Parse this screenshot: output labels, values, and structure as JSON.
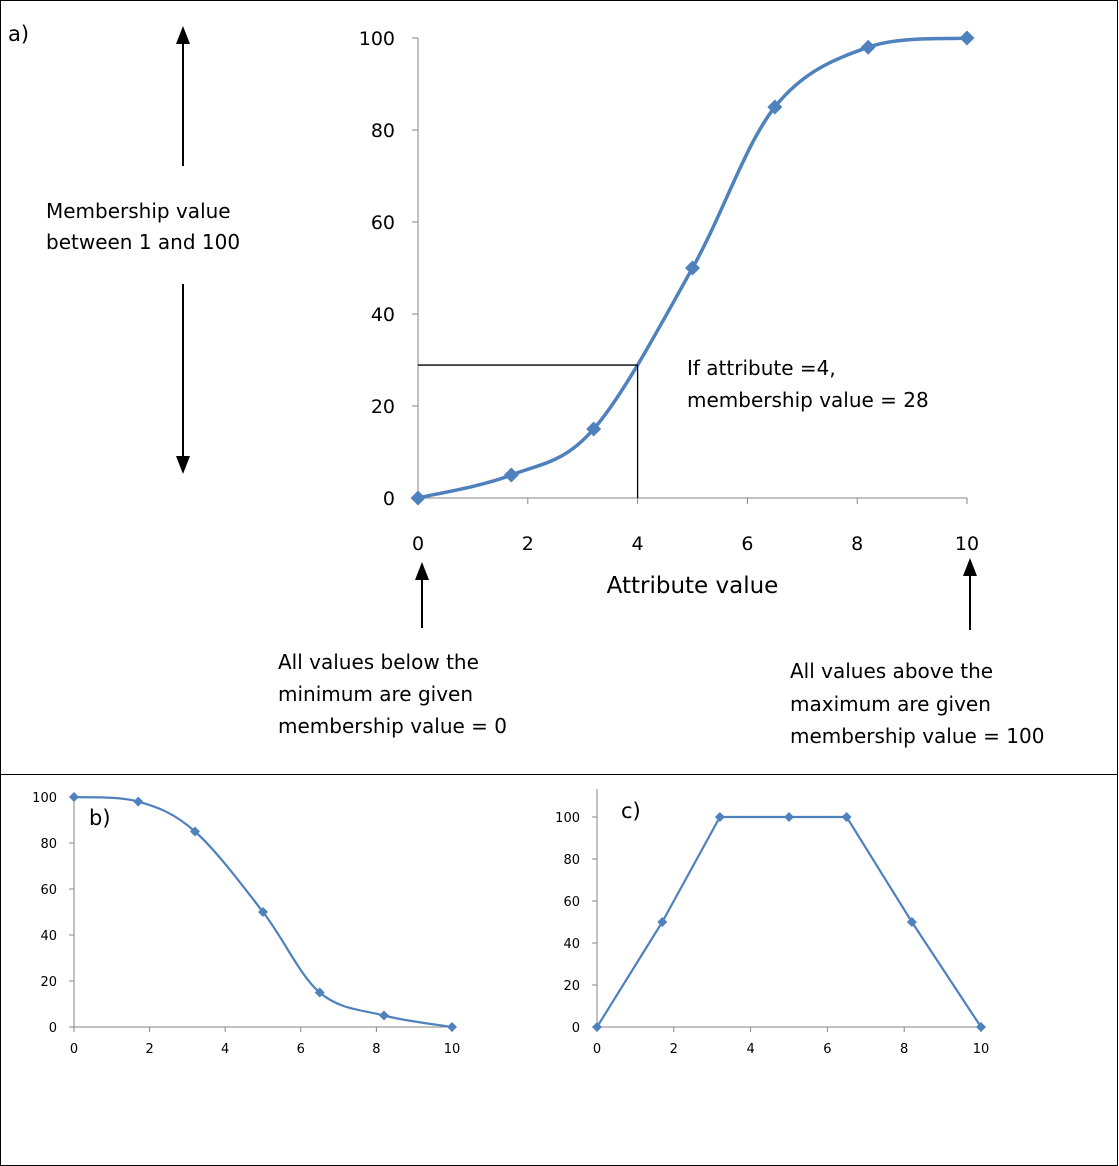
{
  "panel_labels": {
    "a": "a)",
    "b": "b)",
    "c": "c)"
  },
  "annotations": {
    "membership_line1": "Membership value",
    "membership_line2": "between 1 and 100",
    "example_line1": "If attribute =4,",
    "example_line2": "membership value = 28",
    "below_line1": "All values below the",
    "below_line2": "minimum are given",
    "below_line3": "membership value = 0",
    "above_line1": "All values above the",
    "above_line2": "maximum are given",
    "above_line3": "membership value = 100"
  },
  "chart_data": [
    {
      "id": "a",
      "type": "line",
      "xlabel": "Attribute value",
      "ylabel": "",
      "xlim": [
        0,
        10
      ],
      "ylim": [
        0,
        100
      ],
      "xticks": [
        0,
        2,
        4,
        6,
        8,
        10
      ],
      "yticks": [
        0,
        20,
        40,
        60,
        80,
        100
      ],
      "smooth": true,
      "series": [
        {
          "x": [
            0,
            1.7,
            3.2,
            5,
            6.5,
            8.2,
            10
          ],
          "y": [
            0,
            5,
            15,
            50,
            85,
            98,
            100
          ]
        }
      ],
      "reference_point": {
        "x": 4,
        "y": 28
      },
      "color": "#4f81bd"
    },
    {
      "id": "b",
      "type": "line",
      "xlabel": "",
      "ylabel": "",
      "xlim": [
        0,
        10
      ],
      "ylim": [
        0,
        100
      ],
      "xticks": [
        0,
        2,
        4,
        6,
        8,
        10
      ],
      "yticks": [
        0,
        20,
        40,
        60,
        80,
        100
      ],
      "smooth": true,
      "series": [
        {
          "x": [
            0,
            1.7,
            3.2,
            5,
            6.5,
            8.2,
            10
          ],
          "y": [
            100,
            98,
            85,
            50,
            15,
            5,
            0
          ]
        }
      ],
      "color": "#4f81bd"
    },
    {
      "id": "c",
      "type": "line",
      "xlabel": "",
      "ylabel": "",
      "xlim": [
        0,
        10
      ],
      "ylim": [
        0,
        110
      ],
      "xticks": [
        0,
        2,
        4,
        6,
        8,
        10
      ],
      "yticks": [
        0,
        20,
        40,
        60,
        80,
        100
      ],
      "smooth": false,
      "series": [
        {
          "x": [
            0,
            1.7,
            3.2,
            5,
            6.5,
            8.2,
            10
          ],
          "y": [
            0,
            50,
            100,
            100,
            100,
            50,
            0
          ]
        }
      ],
      "color": "#4f81bd"
    }
  ]
}
